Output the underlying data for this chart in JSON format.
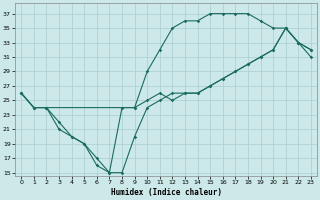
{
  "xlabel": "Humidex (Indice chaleur)",
  "bg_color": "#cce8e8",
  "line_color": "#1a6b60",
  "grid_color": "#aacece",
  "xlim_min": -0.5,
  "xlim_max": 23.5,
  "ylim_min": 14.5,
  "ylim_max": 38.5,
  "yticks": [
    15,
    17,
    19,
    21,
    23,
    25,
    27,
    29,
    31,
    33,
    35,
    37
  ],
  "xticks": [
    0,
    1,
    2,
    3,
    4,
    5,
    6,
    7,
    8,
    9,
    10,
    11,
    12,
    13,
    14,
    15,
    16,
    17,
    18,
    19,
    20,
    21,
    22,
    23
  ],
  "line1_x": [
    0,
    1,
    2,
    3,
    4,
    5,
    6,
    7,
    8,
    9,
    10,
    11,
    12,
    13,
    14,
    15,
    16,
    17,
    18,
    19,
    20,
    21,
    22,
    23
  ],
  "line1_y": [
    26,
    24,
    24,
    21,
    20,
    19,
    17,
    15,
    15,
    20,
    24,
    25,
    26,
    26,
    26,
    27,
    28,
    29,
    30,
    31,
    32,
    35,
    33,
    32
  ],
  "line2_x": [
    0,
    1,
    2,
    3,
    4,
    5,
    6,
    7,
    8,
    9,
    10,
    11,
    12,
    13,
    14,
    15,
    16,
    17,
    18,
    19,
    20,
    21,
    22,
    23
  ],
  "line2_y": [
    26,
    24,
    24,
    22,
    20,
    19,
    16,
    15,
    24,
    24,
    29,
    32,
    35,
    36,
    36,
    37,
    37,
    37,
    37,
    36,
    35,
    35,
    33,
    31
  ],
  "line3_x": [
    0,
    1,
    2,
    9,
    10,
    11,
    12,
    13,
    14,
    15,
    16,
    17,
    18,
    19,
    20,
    21,
    22,
    23
  ],
  "line3_y": [
    26,
    24,
    24,
    24,
    25,
    26,
    25,
    26,
    26,
    27,
    28,
    29,
    30,
    31,
    32,
    35,
    33,
    32
  ]
}
